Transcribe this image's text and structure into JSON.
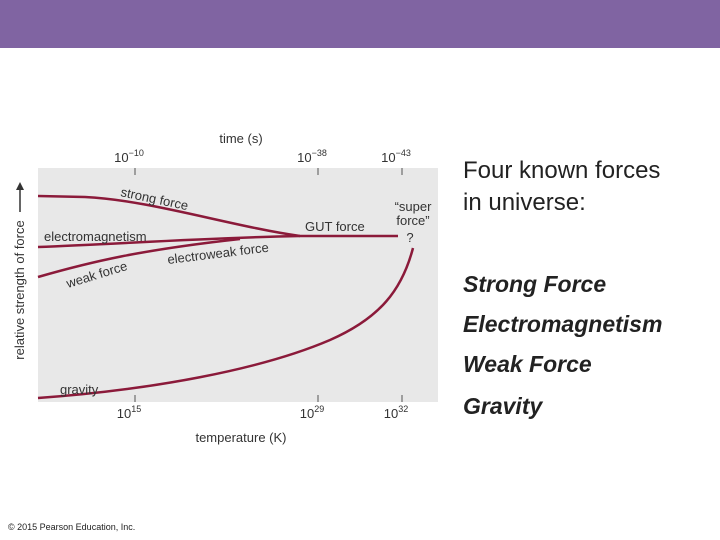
{
  "diagram": {
    "time_axis_label": "time (s)",
    "temperature_axis_label": "temperature (K)",
    "strength_axis_label": "relative strength of force",
    "time_ticks": [
      {
        "base": "10",
        "exp": "−10"
      },
      {
        "base": "10",
        "exp": "−38"
      },
      {
        "base": "10",
        "exp": "−43"
      }
    ],
    "temperature_ticks": [
      {
        "base": "10",
        "exp": "15"
      },
      {
        "base": "10",
        "exp": "29"
      },
      {
        "base": "10",
        "exp": "32"
      }
    ],
    "labels": {
      "strong": "strong force",
      "electromagnetism": "electromagnetism",
      "weak": "weak force",
      "electroweak": "electroweak force",
      "gut": "GUT force",
      "super": [
        "“super",
        "force”"
      ],
      "unknown": "?",
      "gravity": "gravity"
    }
  },
  "text": {
    "intro": [
      "Four known forces",
      "in universe:"
    ],
    "forces": [
      "Strong Force",
      "Electromagnetism",
      "Weak Force",
      "Gravity"
    ]
  },
  "footer": "© 2015 Pearson Education, Inc."
}
